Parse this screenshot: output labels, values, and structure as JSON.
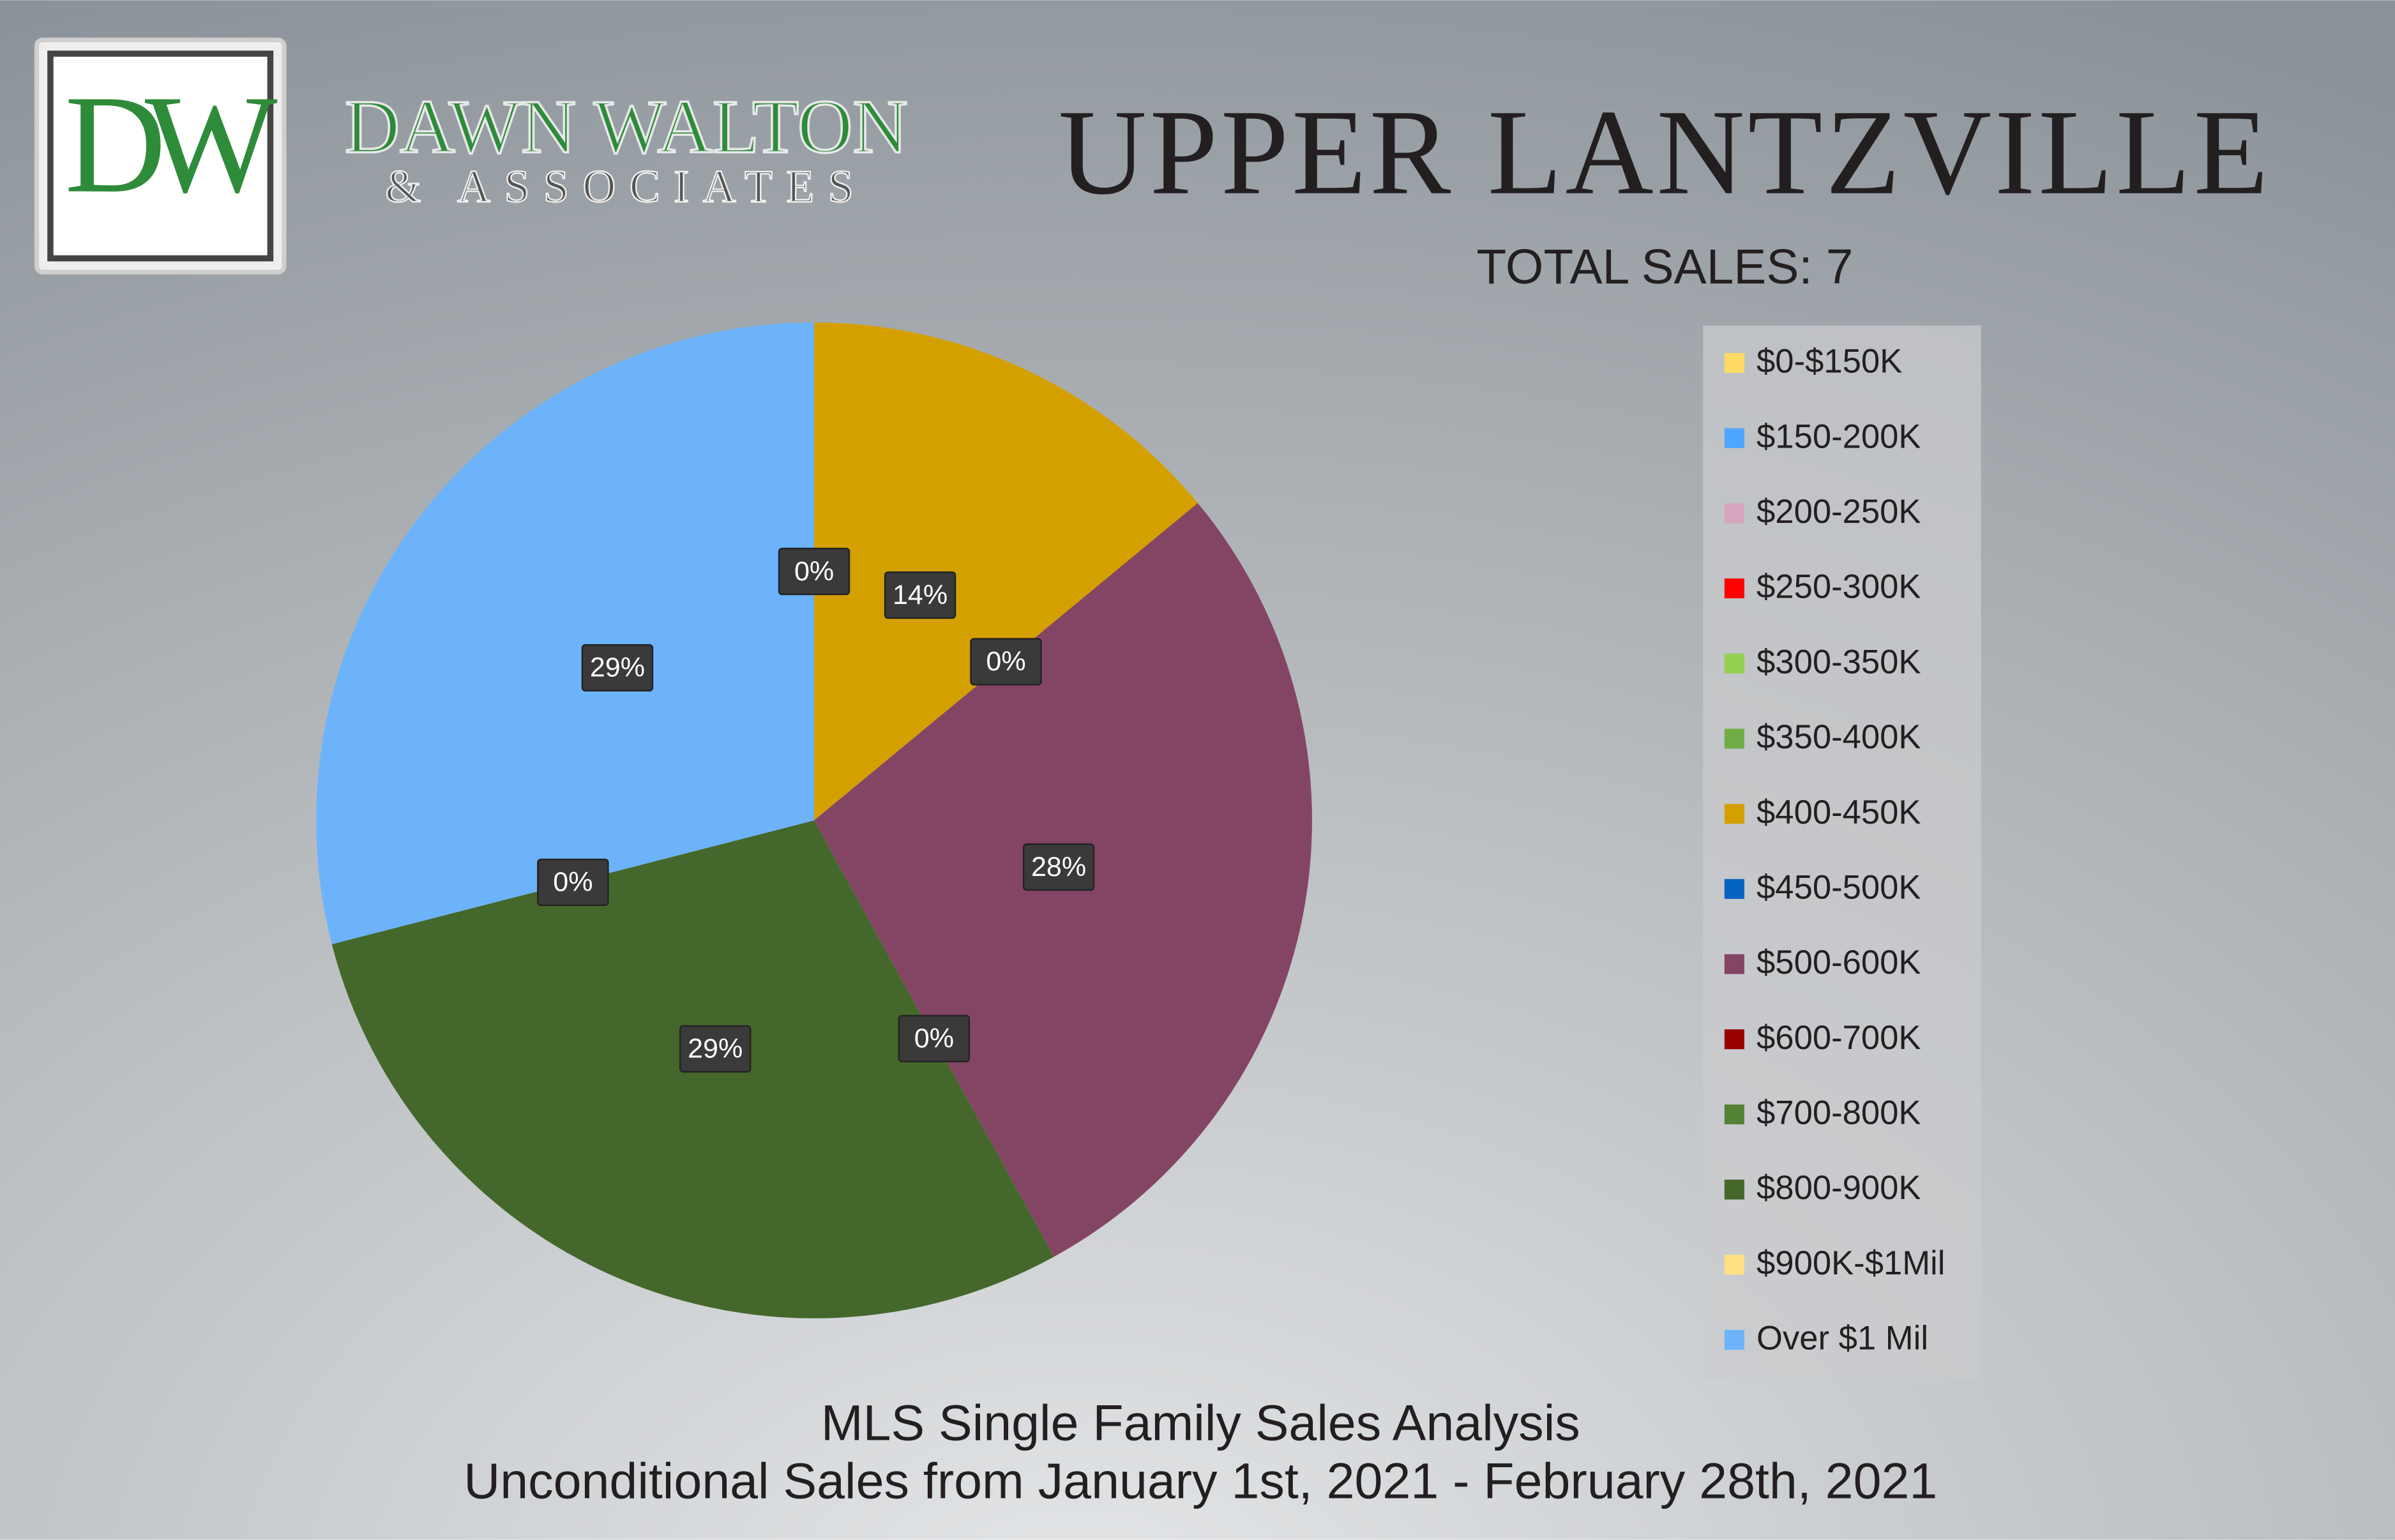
{
  "logo": {
    "initials": "DW",
    "name": "DAWN WALTON",
    "tagline": "& ASSOCIATES"
  },
  "chart_data": {
    "type": "pie",
    "title": "UPPER LANTZVILLE",
    "subtitle": "TOTAL SALES: 7",
    "footer": [
      "MLS Single Family Sales Analysis",
      "Unconditional Sales from January 1st, 2021 - February 28th, 2021"
    ],
    "categories": [
      "$0-$150K",
      "$150-200K",
      "$200-250K",
      "$250-300K",
      "$300-350K",
      "$350-400K",
      "$400-450K",
      "$450-500K",
      "$500-600K",
      "$600-700K",
      "$700-800K",
      "$800-900K",
      "$900K-$1Mil",
      "Over $1 Mil"
    ],
    "values": [
      0,
      0,
      0,
      0,
      0,
      0,
      14,
      0,
      28,
      0,
      0,
      29,
      0,
      29
    ],
    "value_labels": [
      "0%",
      null,
      null,
      null,
      null,
      null,
      "14%",
      "0%",
      "28%",
      "0%",
      null,
      "29%",
      "0%",
      "29%"
    ],
    "colors": [
      "#ffd966",
      "#4da6ff",
      "#d5a6bd",
      "#ff0000",
      "#92d050",
      "#70ad47",
      "#d4a000",
      "#0563c1",
      "#844564",
      "#990000",
      "#548235",
      "#44682b",
      "#ffe082",
      "#6cb3fb"
    ],
    "legend": "right"
  }
}
